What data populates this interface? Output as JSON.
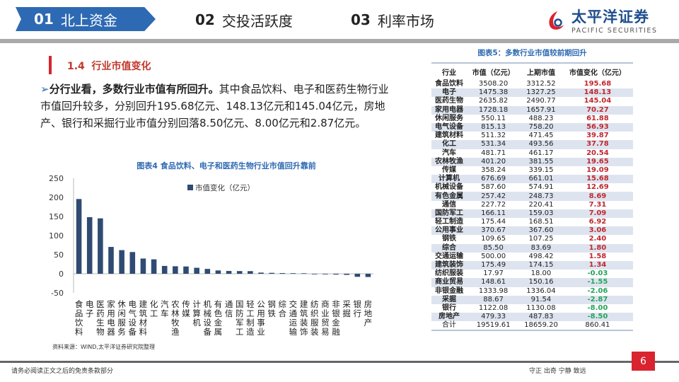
{
  "nav": {
    "tabs": [
      {
        "num": "01",
        "label": "北上资金"
      },
      {
        "num": "02",
        "label": "交投活跃度"
      },
      {
        "num": "03",
        "label": "利率市场"
      }
    ]
  },
  "logo": {
    "cn": "太平洋证券",
    "en": "PACIFIC SECURITIES"
  },
  "section": {
    "title": "1.4  行业市值变化"
  },
  "body": {
    "lead": "分行业看，多数行业市值有所回升。",
    "text": "其中食品饮料、电子和医药生物行业市值回升较多，分别回升195.68亿元、148.13亿元和145.04亿元，房地产、银行和采掘行业市值分别回落8.50亿元、8.00亿元和2.87亿元。"
  },
  "colors": {
    "accent": "#2e6ab3",
    "bar": "#2f4b73",
    "red": "#d9232e",
    "positive": "#c0282e",
    "negative": "#27a35a"
  },
  "chart_data": {
    "type": "bar",
    "title": "图表4 食品饮料、电子和医药生物行业市值回升靠前",
    "legend": "市值变化（亿元）",
    "legend_position": "top",
    "ylim": [
      -50,
      250
    ],
    "yticks": [
      250,
      200,
      150,
      100,
      50,
      0,
      -50
    ],
    "grid": false,
    "categories": [
      "食品饮料",
      "电子",
      "医药生物",
      "家用电器",
      "休闲服务",
      "电气设备",
      "建筑材料",
      "化工",
      "汽车",
      "农林牧渔",
      "传媒",
      "计算机",
      "机械设备",
      "有色金属",
      "通信",
      "国防军工",
      "轻工制造",
      "公用事业",
      "钢铁",
      "综合",
      "交通运输",
      "建筑装饰",
      "纺织服装",
      "商业贸易",
      "非银金融",
      "采掘",
      "银行",
      "房地产"
    ],
    "values": [
      195.68,
      148.13,
      145.04,
      70.27,
      61.88,
      56.93,
      39.87,
      37.78,
      20.54,
      19.65,
      19.09,
      15.68,
      12.69,
      8.69,
      7.31,
      7.09,
      6.92,
      3.06,
      2.4,
      1.8,
      1.58,
      1.34,
      -0.03,
      -1.55,
      -2.06,
      -2.87,
      -8.0,
      -8.5
    ],
    "source": "资料来源：WIND,太平洋证券研究院整理"
  },
  "table": {
    "title": "图表5：多数行业市值较前期回升",
    "headers": [
      "行业",
      "市值（亿元）",
      "上期市值",
      "市值变化（亿元）"
    ],
    "rows": [
      [
        "食品饮料",
        "3508.20",
        "3312.52",
        "195.68"
      ],
      [
        "电子",
        "1475.38",
        "1327.25",
        "148.13"
      ],
      [
        "医药生物",
        "2635.82",
        "2490.77",
        "145.04"
      ],
      [
        "家用电器",
        "1728.18",
        "1657.91",
        "70.27"
      ],
      [
        "休闲服务",
        "550.11",
        "488.23",
        "61.88"
      ],
      [
        "电气设备",
        "815.13",
        "758.20",
        "56.93"
      ],
      [
        "建筑材料",
        "511.32",
        "471.45",
        "39.87"
      ],
      [
        "化工",
        "531.34",
        "493.56",
        "37.78"
      ],
      [
        "汽车",
        "481.71",
        "461.17",
        "20.54"
      ],
      [
        "农林牧渔",
        "401.20",
        "381.55",
        "19.65"
      ],
      [
        "传媒",
        "358.24",
        "339.15",
        "19.09"
      ],
      [
        "计算机",
        "676.69",
        "661.01",
        "15.68"
      ],
      [
        "机械设备",
        "587.60",
        "574.91",
        "12.69"
      ],
      [
        "有色金属",
        "257.42",
        "248.73",
        "8.69"
      ],
      [
        "通信",
        "227.72",
        "220.41",
        "7.31"
      ],
      [
        "国防军工",
        "166.11",
        "159.03",
        "7.09"
      ],
      [
        "轻工制造",
        "175.44",
        "168.51",
        "6.92"
      ],
      [
        "公用事业",
        "370.67",
        "367.60",
        "3.06"
      ],
      [
        "钢铁",
        "109.65",
        "107.25",
        "2.40"
      ],
      [
        "综合",
        "85.50",
        "83.69",
        "1.80"
      ],
      [
        "交通运输",
        "500.00",
        "498.42",
        "1.58"
      ],
      [
        "建筑装饰",
        "175.49",
        "174.15",
        "1.34"
      ],
      [
        "纺织服装",
        "17.97",
        "18.00",
        "-0.03"
      ],
      [
        "商业贸易",
        "148.61",
        "150.16",
        "-1.55"
      ],
      [
        "非银金融",
        "1333.98",
        "1336.04",
        "-2.06"
      ],
      [
        "采掘",
        "88.67",
        "91.54",
        "-2.87"
      ],
      [
        "银行",
        "1122.08",
        "1130.08",
        "-8.00"
      ],
      [
        "房地产",
        "479.33",
        "487.83",
        "-8.50"
      ]
    ],
    "total": [
      "合计",
      "19519.61",
      "18659.20",
      "860.41"
    ]
  },
  "footer": {
    "disclaimer": "请务必阅读正文之后的免责条款部分",
    "motto": "守正 出奇 宁静 致远",
    "page": "6"
  }
}
